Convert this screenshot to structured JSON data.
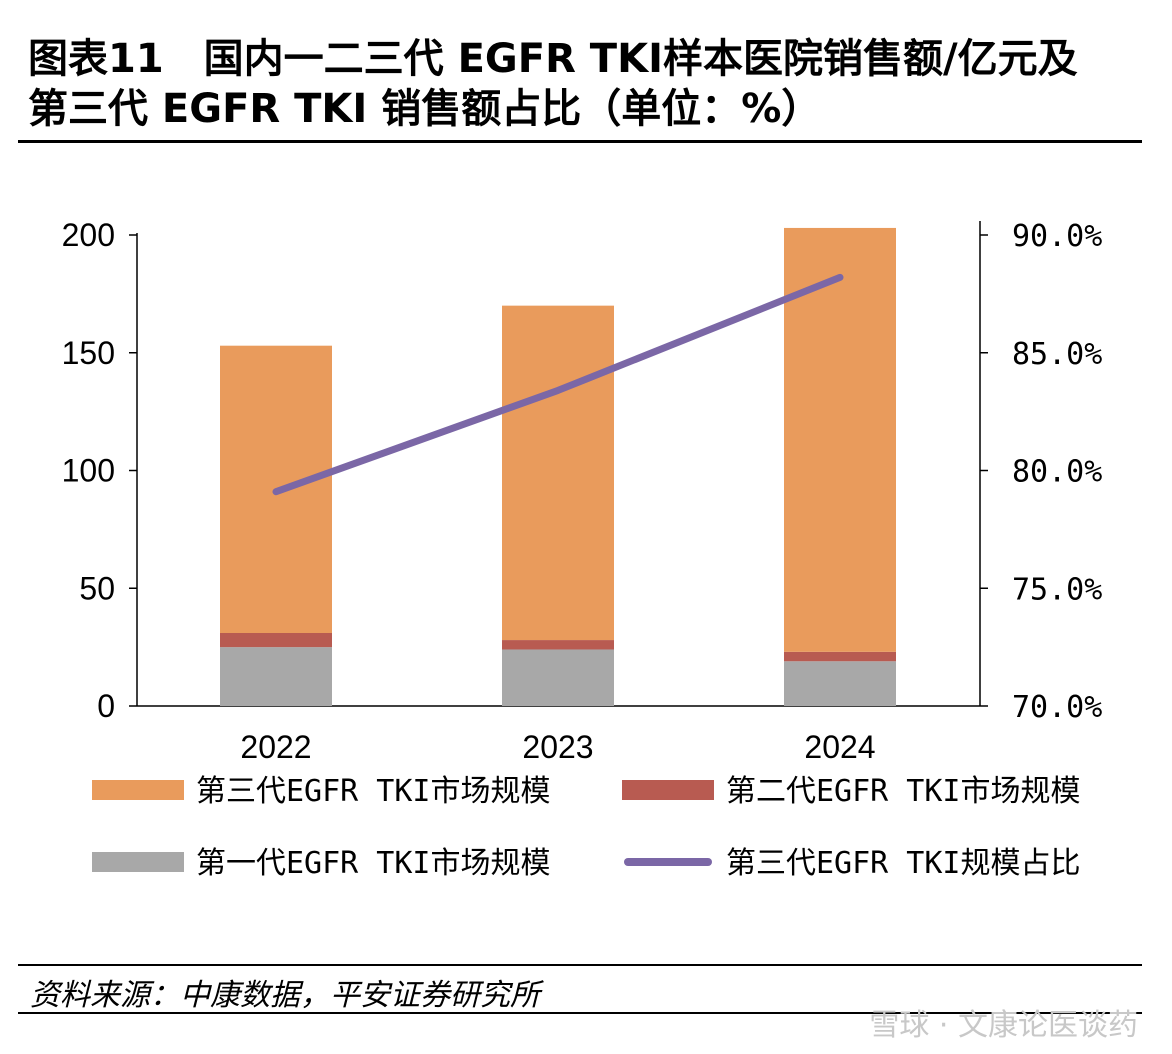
{
  "header": {
    "title_line1": "图表11　国内一二三代 EGFR TKI样本医院销售额/亿元及",
    "title_line2": "第三代 EGFR TKI 销售额占比（单位：%）"
  },
  "footer": {
    "source": "资料来源：中康数据，平安证券研究所",
    "watermark": "雪球 · 文康论医谈药"
  },
  "colors": {
    "third_gen": "#E99B5C",
    "second_gen": "#B85B51",
    "first_gen": "#A8A8A8",
    "share_line": "#7B67A6"
  },
  "chart_data": {
    "type": "bar",
    "stacked": true,
    "title": "国内一二三代 EGFR TKI样本医院销售额/亿元及第三代 EGFR TKI 销售额占比（单位：%）",
    "categories": [
      "2022",
      "2023",
      "2024"
    ],
    "series": [
      {
        "name": "第一代EGFR TKI市场规模",
        "key": "first_gen",
        "axis": "left",
        "values": [
          25,
          24,
          19
        ]
      },
      {
        "name": "第二代EGFR TKI市场规模",
        "key": "second_gen",
        "axis": "left",
        "values": [
          6,
          4,
          4
        ]
      },
      {
        "name": "第三代EGFR TKI市场规模",
        "key": "third_gen",
        "axis": "left",
        "values": [
          122,
          142,
          180
        ]
      },
      {
        "name": "第三代EGFR TKI规模占比",
        "key": "share_line",
        "axis": "right",
        "type": "line",
        "values": [
          79.1,
          83.4,
          88.2
        ]
      }
    ],
    "left_axis": {
      "ticks": [
        "0",
        "50",
        "100",
        "150",
        "200"
      ],
      "ylim": [
        0,
        200
      ]
    },
    "right_axis": {
      "ticks": [
        "70.0%",
        "75.0%",
        "80.0%",
        "85.0%",
        "90.0%"
      ],
      "ylim": [
        70,
        90
      ]
    },
    "legend": [
      {
        "label": "第三代EGFR TKI市场规模",
        "key": "third_gen",
        "kind": "box"
      },
      {
        "label": "第二代EGFR TKI市场规模",
        "key": "second_gen",
        "kind": "box"
      },
      {
        "label": "第一代EGFR TKI市场规模",
        "key": "first_gen",
        "kind": "box"
      },
      {
        "label": "第三代EGFR TKI规模占比",
        "key": "share_line",
        "kind": "line"
      }
    ],
    "legend_position": "bottom"
  }
}
